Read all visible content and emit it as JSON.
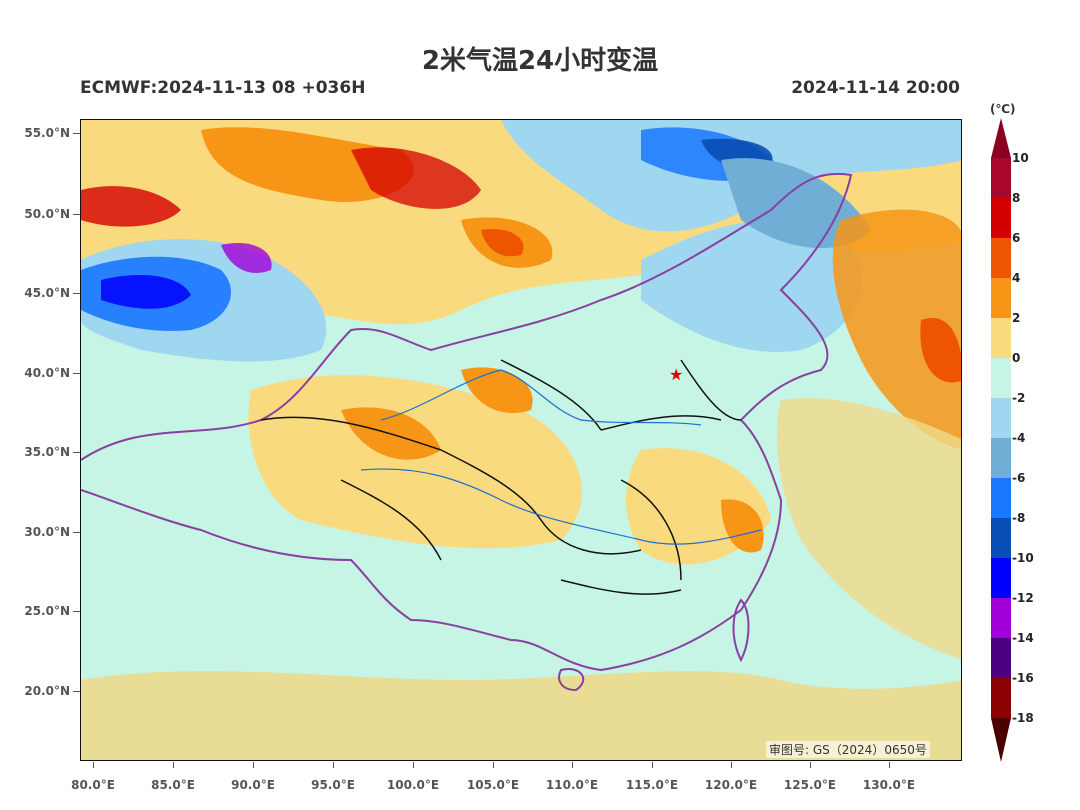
{
  "title": "2米气温24小时变温",
  "model_run": "ECMWF:2024-11-13 08 +036H",
  "valid_time": "2024-11-14 20:00",
  "unit": "(℃)",
  "credit": "审图号: GS（2024）0650号",
  "lat_ticks": [
    "55.0°N",
    "50.0°N",
    "45.0°N",
    "40.0°N",
    "35.0°N",
    "30.0°N",
    "25.0°N",
    "20.0°N"
  ],
  "lon_ticks": [
    "80.0°E",
    "85.0°E",
    "90.0°E",
    "95.0°E",
    "100.0°E",
    "105.0°E",
    "110.0°E",
    "115.0°E",
    "120.0°E",
    "125.0°E",
    "130.0°E"
  ],
  "colorbar": {
    "labels": [
      "10",
      "8",
      "6",
      "4",
      "2",
      "0",
      "-2",
      "-4",
      "-6",
      "-8",
      "-10",
      "-12",
      "-14",
      "-16",
      "-18"
    ],
    "colors": [
      "#a8062a",
      "#d40000",
      "#ee5500",
      "#f79516",
      "#f9da7e",
      "#c6f5e6",
      "#9fd6f0",
      "#71aed6",
      "#1a78ff",
      "#0a4db4",
      "#0000ff",
      "#a000d8",
      "#4b0082",
      "#8b0000"
    ],
    "top_color": "#8b0020",
    "bottom_color": "#4a0000"
  },
  "map": {
    "marker_icon": "star-icon",
    "marker_color": "#e00000"
  }
}
